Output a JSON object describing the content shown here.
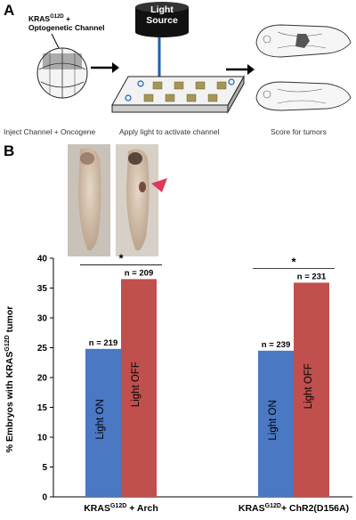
{
  "panel_a": {
    "letter": "A",
    "construct_label": "KRAS",
    "construct_sup": "G12D",
    "construct_suffix": " +",
    "construct_line2": "Optogenetic Channel",
    "light_label_line1": "Light",
    "light_label_line2": "Source",
    "step1": "Inject Channel + Oncogene",
    "step2": "Apply light to activate channel",
    "step3": "Score for tumors"
  },
  "panel_b": {
    "letter": "B"
  },
  "chart_data": {
    "type": "bar",
    "ylabel": "% Embryos with KRAS",
    "ylabel_sup": "G12D",
    "ylabel_suffix": " tumor",
    "ylim": [
      0,
      40
    ],
    "yticks": [
      "0",
      "5",
      "10",
      "15",
      "20",
      "25",
      "30",
      "35",
      "40"
    ],
    "groups": [
      {
        "label": "KRAS",
        "label_sup": "G12D",
        "label_suffix": " + Arch",
        "bars": [
          {
            "name": "Light ON",
            "value": 24.8,
            "n": "n = 219",
            "color": "#4a78c2"
          },
          {
            "name": "Light OFF",
            "value": 36.5,
            "n": "n = 209",
            "color": "#c0504d"
          }
        ],
        "significance": "*"
      },
      {
        "label": "KRAS",
        "label_sup": "G12D",
        "label_suffix": "+ ChR2(D156A)",
        "bars": [
          {
            "name": "Light ON",
            "value": 24.5,
            "n": "n = 239",
            "color": "#4a78c2"
          },
          {
            "name": "Light OFF",
            "value": 35.9,
            "n": "n = 231",
            "color": "#c0504d"
          }
        ],
        "significance": "*"
      }
    ]
  }
}
